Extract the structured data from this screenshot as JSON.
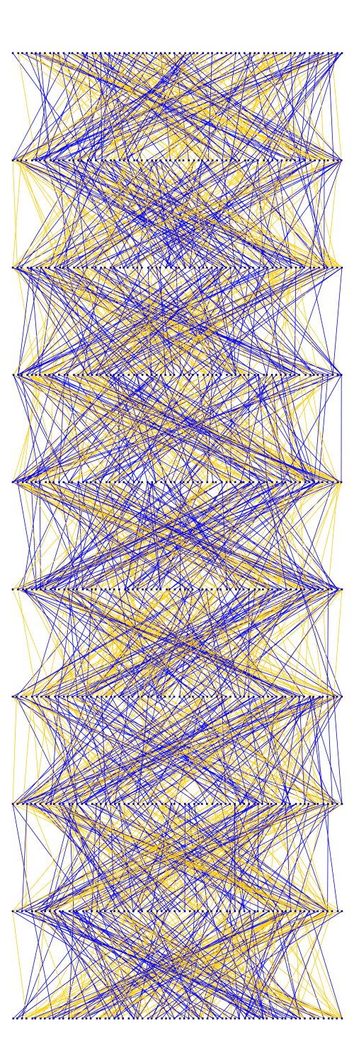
{
  "diagram": {
    "type": "layered-graph",
    "layer_count": 10,
    "nodes_per_layer": 72,
    "edges_per_gap": 260,
    "edge_colors": {
      "primary": "#0000ff",
      "secondary": "#ffcc00"
    },
    "node_color": "#000080"
  }
}
